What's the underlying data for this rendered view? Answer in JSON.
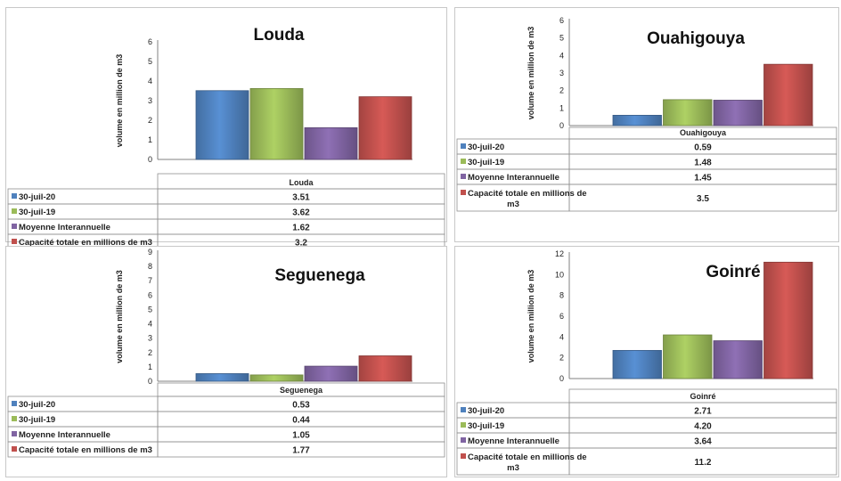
{
  "colors": {
    "s0": "#4f81bd",
    "s1": "#9bbb59",
    "s2": "#8064a2",
    "s3": "#c0504d"
  },
  "chart_data": [
    {
      "type": "bar",
      "title": "Louda",
      "ylabel": "volume en million de m3",
      "categories": [
        "Louda"
      ],
      "ylim": [
        0,
        6
      ],
      "yticks": [
        "0",
        "1",
        "2",
        "3",
        "4",
        "5",
        "6"
      ],
      "series": [
        {
          "name": "30-juil-20",
          "values": [
            3.51
          ],
          "display": "3.51"
        },
        {
          "name": "30-juil-19",
          "values": [
            3.62
          ],
          "display": "3.62"
        },
        {
          "name": "Moyenne Interannuelle",
          "values": [
            1.62
          ],
          "display": "1.62"
        },
        {
          "name": "Capacité totale en millions de m3",
          "values": [
            3.2
          ],
          "display": "3.2"
        }
      ]
    },
    {
      "type": "bar",
      "title": "Ouahigouya",
      "ylabel": "volume en million de m3",
      "categories": [
        "Ouahigouya"
      ],
      "ylim": [
        0,
        6
      ],
      "yticks": [
        "0",
        "1",
        "2",
        "3",
        "4",
        "5",
        "6"
      ],
      "series": [
        {
          "name": "30-juil-20",
          "values": [
            0.59
          ],
          "display": "0.59"
        },
        {
          "name": "30-juil-19",
          "values": [
            1.48
          ],
          "display": "1.48"
        },
        {
          "name": "Moyenne Interannuelle",
          "values": [
            1.45
          ],
          "display": "1.45"
        },
        {
          "name": "Capacité totale en millions de m3",
          "values": [
            3.5
          ],
          "display": "3.5"
        }
      ]
    },
    {
      "type": "bar",
      "title": "Seguenega",
      "ylabel": "volume en million de m3",
      "categories": [
        "Seguenega"
      ],
      "ylim": [
        0,
        9
      ],
      "yticks": [
        "0",
        "1",
        "2",
        "3",
        "4",
        "5",
        "6",
        "7",
        "8",
        "9"
      ],
      "series": [
        {
          "name": "30-juil-20",
          "values": [
            0.53
          ],
          "display": "0.53"
        },
        {
          "name": "30-juil-19",
          "values": [
            0.44
          ],
          "display": "0.44"
        },
        {
          "name": "Moyenne Interannuelle",
          "values": [
            1.05
          ],
          "display": "1.05"
        },
        {
          "name": "Capacité totale en millions de m3",
          "values": [
            1.77
          ],
          "display": "1.77"
        }
      ]
    },
    {
      "type": "bar",
      "title": "Goinré",
      "ylabel": "volume en million de m3",
      "categories": [
        "Goinré"
      ],
      "ylim": [
        0,
        12
      ],
      "yticks": [
        "0",
        "2",
        "4",
        "6",
        "8",
        "10",
        "12"
      ],
      "series": [
        {
          "name": "30-juil-20",
          "values": [
            2.71
          ],
          "display": "2.71"
        },
        {
          "name": "30-juil-19",
          "values": [
            4.2
          ],
          "display": "4.20"
        },
        {
          "name": "Moyenne Interannuelle",
          "values": [
            3.64
          ],
          "display": "3.64"
        },
        {
          "name": "Capacité totale en millions de m3",
          "values": [
            11.2
          ],
          "display": "11.2"
        }
      ]
    }
  ]
}
